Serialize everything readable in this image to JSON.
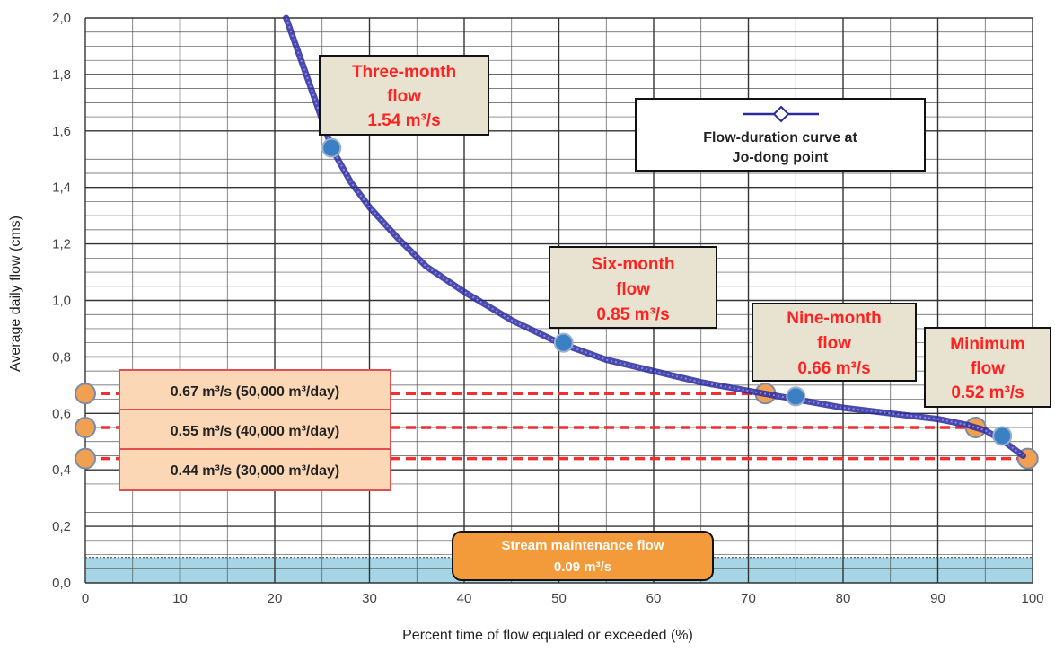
{
  "chart_data": {
    "type": "line",
    "xlabel": "Percent time of flow equaled or exceeded (%)",
    "ylabel": "Average daily flow (cms)",
    "xlim": [
      0,
      100
    ],
    "ylim": [
      0,
      2.0
    ],
    "x_ticks": [
      "0",
      "10",
      "20",
      "30",
      "40",
      "50",
      "60",
      "70",
      "80",
      "90",
      "100"
    ],
    "y_ticks": [
      "0,0",
      "0,2",
      "0,4",
      "0,6",
      "0,8",
      "1,0",
      "1,2",
      "1,4",
      "1,6",
      "1,8",
      "2,0"
    ],
    "grid": true,
    "legend_position": "upper-right",
    "series": [
      {
        "name": "Flow-duration curve at Jo-dong point",
        "color": "#2a2aa0",
        "marker": "diamond",
        "x": [
          21.2,
          23,
          25,
          26,
          28,
          30,
          33,
          36,
          40,
          45,
          50,
          55,
          60,
          65,
          70,
          75,
          80,
          85,
          90,
          93,
          95,
          97,
          99
        ],
        "y": [
          2.0,
          1.83,
          1.64,
          1.54,
          1.42,
          1.33,
          1.22,
          1.12,
          1.03,
          0.93,
          0.85,
          0.79,
          0.75,
          0.71,
          0.68,
          0.65,
          0.62,
          0.6,
          0.58,
          0.56,
          0.54,
          0.5,
          0.45
        ]
      }
    ],
    "key_points": [
      {
        "x": 26,
        "y": 1.54,
        "label": "Three-month flow",
        "value": "1.54 m³/s"
      },
      {
        "x": 50.5,
        "y": 0.85,
        "label": "Six-month flow",
        "value": "0.85 m³/s"
      },
      {
        "x": 75,
        "y": 0.66,
        "label": "Nine-month flow",
        "value": "0.66 m³/s"
      },
      {
        "x": 96.8,
        "y": 0.52,
        "label": "Minimum flow",
        "value": "0.52 m³/s"
      }
    ],
    "reference_lines": [
      {
        "y": 0.67,
        "label": "0.67 m³/s (50,000 m³/day)",
        "x_end": 71.8
      },
      {
        "y": 0.55,
        "label": "0.55 m³/s (40,000 m³/day)",
        "x_end": 94
      },
      {
        "y": 0.44,
        "label": "0.44 m³/s (30,000 m³/day)",
        "x_end": 99.5
      }
    ],
    "band": {
      "y_min": 0,
      "y_max": 0.09,
      "label": "Stream maintenance flow",
      "value": "0.09 m³/s",
      "color": "#a6d6e6"
    },
    "callouts": {
      "three_month": [
        "Three-month",
        "flow",
        "1.54 m³/s"
      ],
      "six_month": [
        "Six-month",
        "flow",
        "0.85 m³/s"
      ],
      "nine_month": [
        "Nine-month",
        "flow",
        "0.66 m³/s"
      ],
      "minimum": [
        "Minimum",
        "flow",
        "0.52 m³/s"
      ]
    },
    "legend_text": [
      "Flow-duration curve at",
      "Jo-dong point"
    ],
    "colors": {
      "curve": "#2a2aa0",
      "key_point": "#3b7fc4",
      "reference": "#f03030",
      "reference_point": "#f0a050",
      "callout_bg": "#e8e3d0",
      "reference_label_bg": "#fbd7b6",
      "band_label_bg": "#f39a3a"
    }
  }
}
